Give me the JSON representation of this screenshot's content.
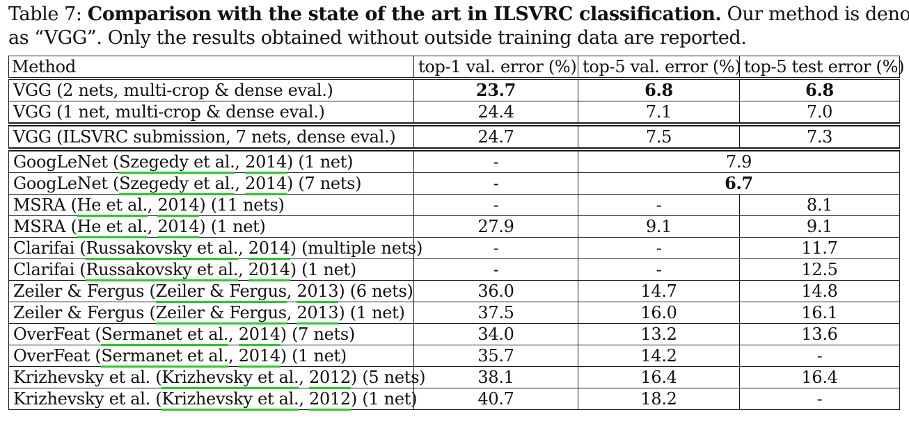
{
  "caption": {
    "label": "Table 7:",
    "bold_text": "Comparison with the state of the art in ILSVRC classification.",
    "rest_line1": "Our method is denoted",
    "rest_line2": "as “VGG”. Only the results obtained without outside training data are reported."
  },
  "table": {
    "headers": [
      "Method",
      "top-1 val. error (%)",
      "top-5 val. error (%)",
      "top-5 test error (%)"
    ],
    "rows": [
      {
        "prefix": "VGG (2 nets, multi-crop & dense eval.)",
        "cite_author": "",
        "cite_year": "",
        "suffix": "",
        "top1": "23.7",
        "top5val": "6.8",
        "top5test": "6.8",
        "bold": true
      },
      {
        "prefix": "VGG (1 net, multi-crop & dense eval.)",
        "cite_author": "",
        "cite_year": "",
        "suffix": "",
        "top1": "24.4",
        "top5val": "7.1",
        "top5test": "7.0",
        "bold": false
      },
      {
        "prefix": "VGG (ILSVRC submission, 7 nets, dense eval.)",
        "cite_author": "",
        "cite_year": "",
        "suffix": "",
        "top1": "24.7",
        "top5val": "7.5",
        "top5test": "7.3",
        "bold": false
      },
      {
        "prefix": "GoogLeNet (",
        "cite_author": "Szegedy et al.",
        "cite_year": "2014",
        "suffix": ") (1 net)",
        "top1": "-",
        "merged": "7.9",
        "bold": false
      },
      {
        "prefix": "GoogLeNet (",
        "cite_author": "Szegedy et al.",
        "cite_year": "2014",
        "suffix": ") (7 nets)",
        "top1": "-",
        "merged": "6.7",
        "bold": true
      },
      {
        "prefix": "MSRA (",
        "cite_author": "He et al.",
        "cite_year": "2014",
        "suffix": ") (11 nets)",
        "top1": "-",
        "top5val": "-",
        "top5test": "8.1",
        "bold": false
      },
      {
        "prefix": "MSRA (",
        "cite_author": "He et al.",
        "cite_year": "2014",
        "suffix": ") (1 net)",
        "top1": "27.9",
        "top5val": "9.1",
        "top5test": "9.1",
        "bold": false
      },
      {
        "prefix": "Clarifai (",
        "cite_author": "Russakovsky et al.",
        "cite_year": "2014",
        "suffix": ") (multiple nets)",
        "top1": "-",
        "top5val": "-",
        "top5test": "11.7",
        "bold": false
      },
      {
        "prefix": "Clarifai (",
        "cite_author": "Russakovsky et al.",
        "cite_year": "2014",
        "suffix": ") (1 net)",
        "top1": "-",
        "top5val": "-",
        "top5test": "12.5",
        "bold": false
      },
      {
        "prefix": "Zeiler & Fergus (",
        "cite_author": "Zeiler & Fergus",
        "cite_year": "2013",
        "suffix": ") (6 nets)",
        "top1": "36.0",
        "top5val": "14.7",
        "top5test": "14.8",
        "bold": false
      },
      {
        "prefix": "Zeiler & Fergus (",
        "cite_author": "Zeiler & Fergus",
        "cite_year": "2013",
        "suffix": ") (1 net)",
        "top1": "37.5",
        "top5val": "16.0",
        "top5test": "16.1",
        "bold": false
      },
      {
        "prefix": "OverFeat (",
        "cite_author": "Sermanet et al.",
        "cite_year": "2014",
        "suffix": ") (7 nets)",
        "top1": "34.0",
        "top5val": "13.2",
        "top5test": "13.6",
        "bold": false
      },
      {
        "prefix": "OverFeat (",
        "cite_author": "Sermanet et al.",
        "cite_year": "2014",
        "suffix": ") (1 net)",
        "top1": "35.7",
        "top5val": "14.2",
        "top5test": "-",
        "bold": false
      },
      {
        "prefix": "Krizhevsky et al. (",
        "cite_author": "Krizhevsky et al.",
        "cite_year": "2012",
        "suffix": ") (5 nets)",
        "top1": "38.1",
        "top5val": "16.4",
        "top5test": "16.4",
        "bold": false
      },
      {
        "prefix": "Krizhevsky et al. (",
        "cite_author": "Krizhevsky et al.",
        "cite_year": "2012",
        "suffix": ") (1 net)",
        "top1": "40.7",
        "top5val": "18.2",
        "top5test": "-",
        "bold": false
      }
    ]
  },
  "colors": {
    "citation_underline": "#22d022",
    "text": "#111111",
    "rule": "#1a1a1a"
  }
}
